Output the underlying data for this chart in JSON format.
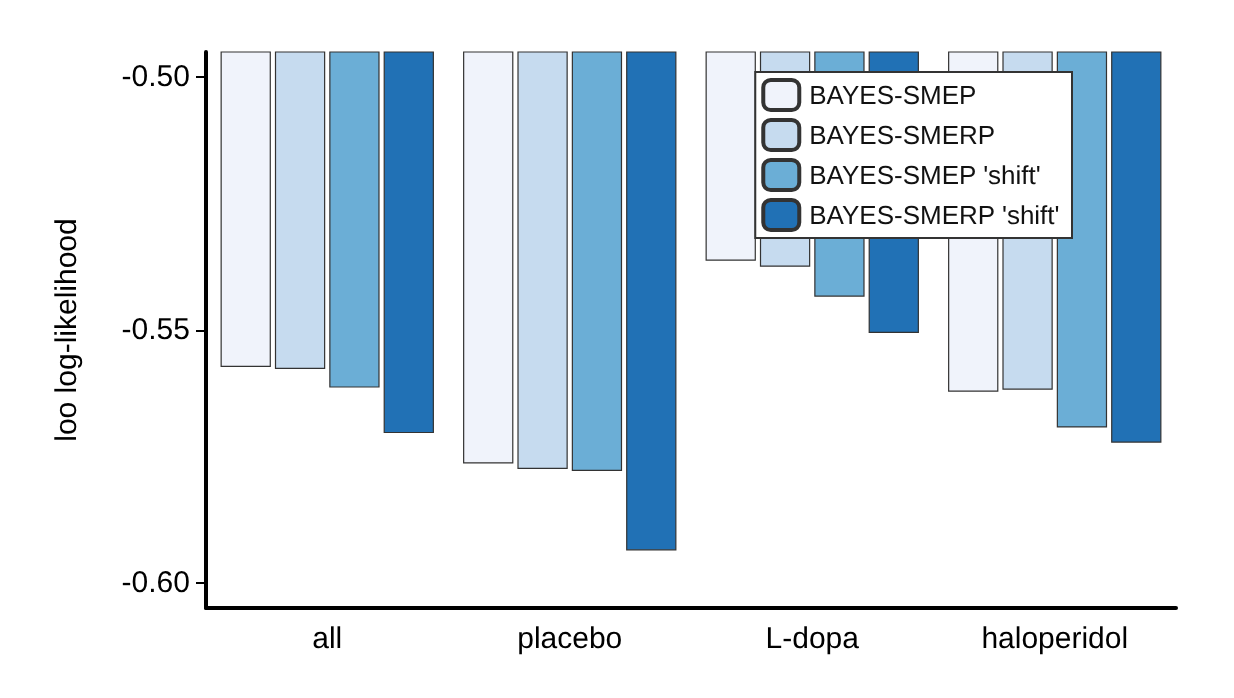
{
  "chart_data": {
    "type": "bar",
    "ylabel": "loo log-likelihood",
    "categories": [
      "all",
      "placebo",
      "L-dopa",
      "haloperidol"
    ],
    "series": [
      {
        "name": "BAYES-SMEP",
        "color": "#f0f3fb",
        "values": [
          -0.5573,
          -0.5764,
          -0.5363,
          -0.5622
        ]
      },
      {
        "name": "BAYES-SMERP",
        "color": "#c6dbef",
        "values": [
          -0.5577,
          -0.5775,
          -0.5375,
          -0.5618
        ]
      },
      {
        "name": "BAYES-SMEP 'shift'",
        "color": "#6baed6",
        "values": [
          -0.5614,
          -0.5779,
          -0.5434,
          -0.5693
        ]
      },
      {
        "name": "BAYES-SMERP 'shift'",
        "color": "#2171b5",
        "values": [
          -0.5704,
          -0.5936,
          -0.5506,
          -0.5723
        ]
      }
    ],
    "ylim": [
      -0.605,
      -0.495
    ],
    "yticks": [
      {
        "value": -0.6,
        "label": "-0.60"
      },
      {
        "value": -0.55,
        "label": "-0.55"
      },
      {
        "value": -0.5,
        "label": "-0.50"
      }
    ],
    "grid": false,
    "legend": "top right"
  }
}
